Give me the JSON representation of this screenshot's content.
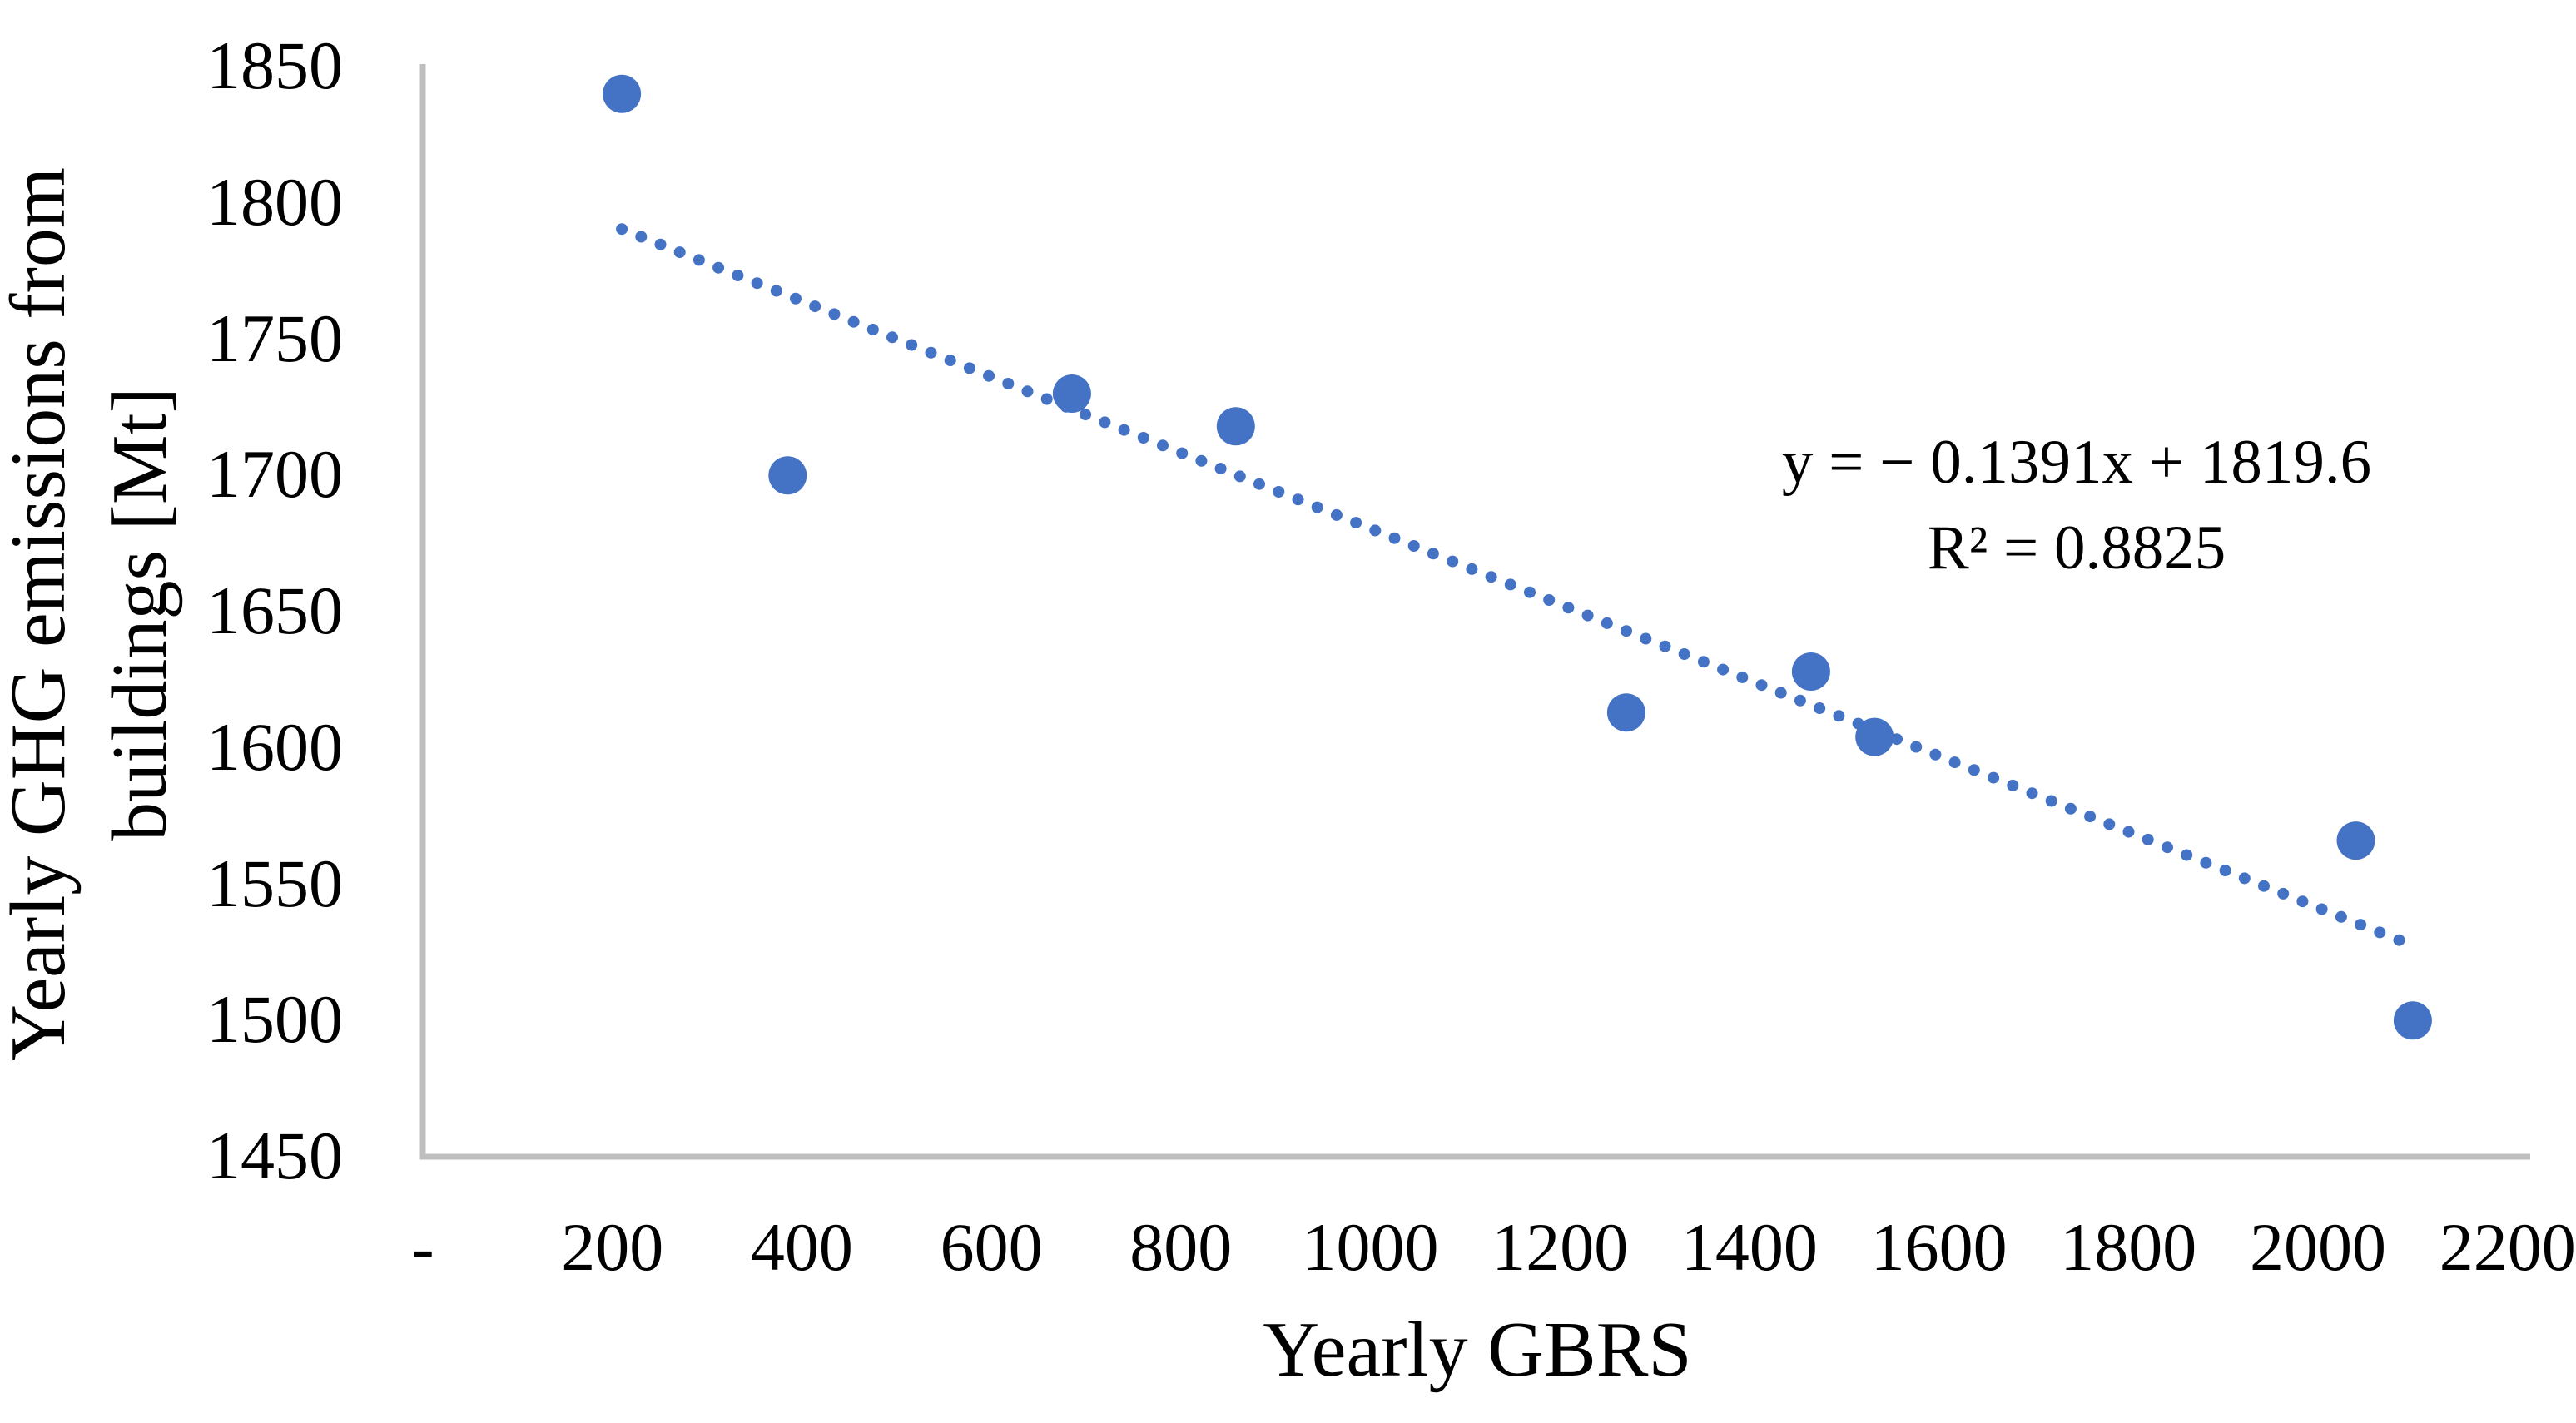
{
  "chart_data": {
    "type": "scatter",
    "title": "",
    "xlabel": "Yearly GBRS",
    "ylabel": "Yearly GHG emissions from buildings [Mt]",
    "ylabel_lines": [
      "Yearly GHG emissions from",
      "buildings [Mt]"
    ],
    "points": [
      [
        210,
        1840
      ],
      [
        385,
        1700
      ],
      [
        685,
        1730
      ],
      [
        858,
        1718
      ],
      [
        1270,
        1613
      ],
      [
        1465,
        1628
      ],
      [
        1532,
        1604
      ],
      [
        2040,
        1566
      ],
      [
        2100,
        1500
      ]
    ],
    "xlim": [
      0,
      2200
    ],
    "ylim": [
      1450,
      1850
    ],
    "x_ticks": [
      {
        "value": 0,
        "label": "-"
      },
      {
        "value": 200,
        "label": "200"
      },
      {
        "value": 400,
        "label": "400"
      },
      {
        "value": 600,
        "label": "600"
      },
      {
        "value": 800,
        "label": "800"
      },
      {
        "value": 1000,
        "label": "1000"
      },
      {
        "value": 1200,
        "label": "1200"
      },
      {
        "value": 1400,
        "label": "1400"
      },
      {
        "value": 1600,
        "label": "1600"
      },
      {
        "value": 1800,
        "label": "1800"
      },
      {
        "value": 2000,
        "label": "2000"
      },
      {
        "value": 2200,
        "label": "2200"
      }
    ],
    "y_ticks": [
      {
        "value": 1850,
        "label": "1850"
      },
      {
        "value": 1800,
        "label": "1800"
      },
      {
        "value": 1750,
        "label": "1750"
      },
      {
        "value": 1700,
        "label": "1700"
      },
      {
        "value": 1650,
        "label": "1650"
      },
      {
        "value": 1600,
        "label": "1600"
      },
      {
        "value": 1550,
        "label": "1550"
      },
      {
        "value": 1500,
        "label": "1500"
      },
      {
        "value": 1450,
        "label": "1450"
      }
    ],
    "grid": false,
    "legend": false,
    "marker_color": "#4472C4",
    "axis_color": "#BFBFBF",
    "text_color": "#000000",
    "trendline": {
      "type": "linear",
      "style": "dotted",
      "slope": -0.1391,
      "intercept": 1819.6,
      "x_start": 210,
      "x_end": 2100,
      "color": "#4472C4"
    },
    "annotations": {
      "equation": "y = − 0.1391x + 1819.6",
      "r_squared": "R² = 0.8825"
    }
  }
}
